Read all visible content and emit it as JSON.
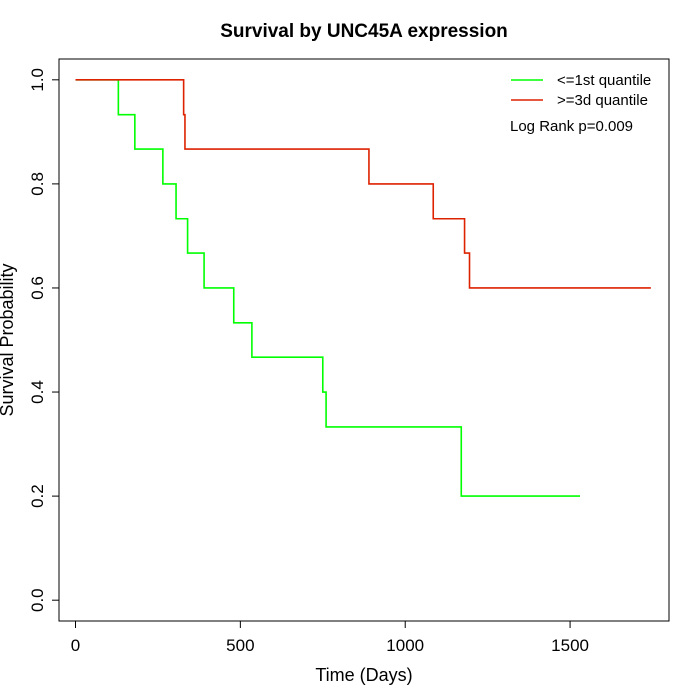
{
  "chart_data": {
    "type": "line",
    "title": "Survival by UNC45A expression",
    "xlabel": "Time (Days)",
    "ylabel": "Survival Probability",
    "xlim": [
      -50,
      1800
    ],
    "ylim": [
      -0.04,
      1.04
    ],
    "x_ticks": [
      0,
      500,
      1000,
      1500
    ],
    "y_ticks": [
      0.0,
      0.2,
      0.4,
      0.6,
      0.8,
      1.0
    ],
    "x_tick_labels": [
      "0",
      "500",
      "1000",
      "1500"
    ],
    "y_tick_labels": [
      "0.0",
      "0.2",
      "0.4",
      "0.6",
      "0.8",
      "1.0"
    ],
    "grid": false,
    "legend_position": "top-right",
    "annotation": "Log Rank p=0.009",
    "series": [
      {
        "name": "<=1st quantile",
        "color": "#00ff00",
        "step_points": [
          [
            0,
            1.0
          ],
          [
            130,
            0.933
          ],
          [
            180,
            0.867
          ],
          [
            265,
            0.8
          ],
          [
            305,
            0.733
          ],
          [
            340,
            0.667
          ],
          [
            390,
            0.6
          ],
          [
            480,
            0.533
          ],
          [
            535,
            0.467
          ],
          [
            750,
            0.4
          ],
          [
            760,
            0.333
          ],
          [
            1170,
            0.2
          ],
          [
            1530,
            0.2
          ]
        ]
      },
      {
        "name": ">=3d quantile",
        "color": "#dd2200",
        "step_points": [
          [
            0,
            1.0
          ],
          [
            328,
            0.933
          ],
          [
            332,
            0.867
          ],
          [
            890,
            0.8
          ],
          [
            1085,
            0.733
          ],
          [
            1180,
            0.667
          ],
          [
            1195,
            0.6
          ],
          [
            1745,
            0.6
          ]
        ]
      }
    ]
  }
}
